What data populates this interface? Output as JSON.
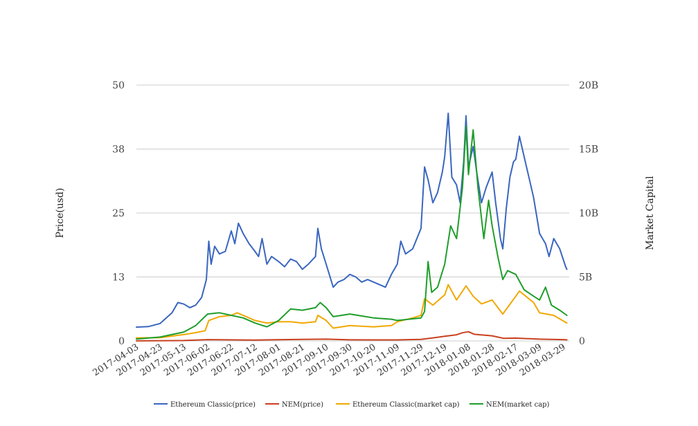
{
  "chart_data": {
    "type": "line",
    "title": "",
    "ylabel_left": "Price(usd)",
    "ylabel_right": "Market Capital",
    "ylim_left": [
      0,
      50
    ],
    "ylim_right": [
      0,
      20000000000
    ],
    "left_ticks": [
      {
        "v": 0,
        "label": "0"
      },
      {
        "v": 12.5,
        "label": "13"
      },
      {
        "v": 25,
        "label": "25"
      },
      {
        "v": 37.5,
        "label": "38"
      },
      {
        "v": 50,
        "label": "50"
      }
    ],
    "right_ticks": [
      {
        "v": 0,
        "label": "0"
      },
      {
        "v": 5000000000,
        "label": "5B"
      },
      {
        "v": 10000000000,
        "label": "10B"
      },
      {
        "v": 15000000000,
        "label": "15B"
      },
      {
        "v": 20000000000,
        "label": "20B"
      }
    ],
    "x_range": [
      "2017-04-03",
      "2018-04-03"
    ],
    "x_ticks": [
      "2017-04-03",
      "2017-04-23",
      "2017-05-13",
      "2017-06-02",
      "2017-06-22",
      "2017-07-12",
      "2017-08-01",
      "2017-08-21",
      "2017-09-10",
      "2017-09-30",
      "2017-10-20",
      "2017-11-09",
      "2017-11-29",
      "2017-12-19",
      "2018-01-08",
      "2018-01-28",
      "2018-02-17",
      "2018-03-09",
      "2018-03-29"
    ],
    "grid": true,
    "legend_position": "bottom",
    "series": [
      {
        "name": "Ethereum Classic(price)",
        "color": "#3a66bf",
        "axis": "left",
        "points": [
          [
            "2017-04-03",
            2.7
          ],
          [
            "2017-04-13",
            2.8
          ],
          [
            "2017-04-23",
            3.4
          ],
          [
            "2017-05-03",
            5.5
          ],
          [
            "2017-05-08",
            7.5
          ],
          [
            "2017-05-13",
            7.2
          ],
          [
            "2017-05-18",
            6.5
          ],
          [
            "2017-05-23",
            7.0
          ],
          [
            "2017-05-28",
            8.5
          ],
          [
            "2017-06-01",
            12.0
          ],
          [
            "2017-06-03",
            19.5
          ],
          [
            "2017-06-05",
            15.0
          ],
          [
            "2017-06-08",
            18.5
          ],
          [
            "2017-06-12",
            17.0
          ],
          [
            "2017-06-17",
            17.5
          ],
          [
            "2017-06-22",
            21.5
          ],
          [
            "2017-06-25",
            19.0
          ],
          [
            "2017-06-28",
            23.0
          ],
          [
            "2017-07-02",
            21.0
          ],
          [
            "2017-07-07",
            19.0
          ],
          [
            "2017-07-12",
            17.5
          ],
          [
            "2017-07-15",
            16.5
          ],
          [
            "2017-07-18",
            20.0
          ],
          [
            "2017-07-22",
            15.0
          ],
          [
            "2017-07-26",
            16.5
          ],
          [
            "2017-08-01",
            15.5
          ],
          [
            "2017-08-06",
            14.5
          ],
          [
            "2017-08-11",
            16.0
          ],
          [
            "2017-08-16",
            15.5
          ],
          [
            "2017-08-21",
            14.0
          ],
          [
            "2017-08-26",
            15.0
          ],
          [
            "2017-09-01",
            16.5
          ],
          [
            "2017-09-03",
            22.0
          ],
          [
            "2017-09-06",
            18.0
          ],
          [
            "2017-09-10",
            15.0
          ],
          [
            "2017-09-14",
            12.0
          ],
          [
            "2017-09-16",
            10.5
          ],
          [
            "2017-09-20",
            11.5
          ],
          [
            "2017-09-25",
            12.0
          ],
          [
            "2017-09-30",
            13.0
          ],
          [
            "2017-10-05",
            12.5
          ],
          [
            "2017-10-10",
            11.5
          ],
          [
            "2017-10-15",
            12.0
          ],
          [
            "2017-10-20",
            11.5
          ],
          [
            "2017-10-25",
            11.0
          ],
          [
            "2017-10-30",
            10.5
          ],
          [
            "2017-11-04",
            13.0
          ],
          [
            "2017-11-09",
            15.0
          ],
          [
            "2017-11-12",
            19.5
          ],
          [
            "2017-11-16",
            17.0
          ],
          [
            "2017-11-22",
            18.0
          ],
          [
            "2017-11-29",
            22.0
          ],
          [
            "2017-12-02",
            34.0
          ],
          [
            "2017-12-05",
            31.5
          ],
          [
            "2017-12-09",
            27.0
          ],
          [
            "2017-12-13",
            29.0
          ],
          [
            "2017-12-17",
            33.0
          ],
          [
            "2017-12-19",
            36.0
          ],
          [
            "2017-12-22",
            44.5
          ],
          [
            "2017-12-25",
            32.0
          ],
          [
            "2017-12-29",
            30.5
          ],
          [
            "2018-01-01",
            27.0
          ],
          [
            "2018-01-04",
            35.0
          ],
          [
            "2018-01-06",
            44.0
          ],
          [
            "2018-01-08",
            34.0
          ],
          [
            "2018-01-12",
            38.0
          ],
          [
            "2018-01-15",
            33.0
          ],
          [
            "2018-01-19",
            27.0
          ],
          [
            "2018-01-23",
            30.0
          ],
          [
            "2018-01-28",
            33.0
          ],
          [
            "2018-01-31",
            27.0
          ],
          [
            "2018-02-04",
            20.0
          ],
          [
            "2018-02-06",
            18.0
          ],
          [
            "2018-02-09",
            26.0
          ],
          [
            "2018-02-12",
            32.0
          ],
          [
            "2018-02-15",
            35.0
          ],
          [
            "2018-02-17",
            35.5
          ],
          [
            "2018-02-20",
            40.0
          ],
          [
            "2018-02-24",
            36.0
          ],
          [
            "2018-02-28",
            32.0
          ],
          [
            "2018-03-04",
            28.0
          ],
          [
            "2018-03-09",
            21.0
          ],
          [
            "2018-03-14",
            19.0
          ],
          [
            "2018-03-17",
            16.5
          ],
          [
            "2018-03-21",
            20.0
          ],
          [
            "2018-03-26",
            18.0
          ],
          [
            "2018-03-31",
            14.5
          ],
          [
            "2018-04-01",
            14.0
          ]
        ]
      },
      {
        "name": "NEM(price)",
        "color": "#c8401e",
        "axis": "left",
        "points": [
          [
            "2017-04-03",
            0.02
          ],
          [
            "2017-05-13",
            0.08
          ],
          [
            "2017-06-02",
            0.25
          ],
          [
            "2017-07-12",
            0.18
          ],
          [
            "2017-08-21",
            0.3
          ],
          [
            "2017-09-10",
            0.35
          ],
          [
            "2017-09-30",
            0.22
          ],
          [
            "2017-10-20",
            0.2
          ],
          [
            "2017-11-09",
            0.2
          ],
          [
            "2017-11-29",
            0.3
          ],
          [
            "2017-12-09",
            0.6
          ],
          [
            "2017-12-19",
            0.9
          ],
          [
            "2017-12-29",
            1.2
          ],
          [
            "2018-01-03",
            1.6
          ],
          [
            "2018-01-08",
            1.8
          ],
          [
            "2018-01-13",
            1.3
          ],
          [
            "2018-01-28",
            1.0
          ],
          [
            "2018-02-07",
            0.5
          ],
          [
            "2018-02-17",
            0.55
          ],
          [
            "2018-03-09",
            0.35
          ],
          [
            "2018-03-29",
            0.25
          ],
          [
            "2018-04-01",
            0.22
          ]
        ]
      },
      {
        "name": "Ethereum Classic(market cap)",
        "color": "#f0a800",
        "axis": "right",
        "points": [
          [
            "2017-04-03",
            240000000
          ],
          [
            "2017-04-23",
            260000000
          ],
          [
            "2017-05-13",
            500000000
          ],
          [
            "2017-05-23",
            650000000
          ],
          [
            "2017-05-31",
            800000000
          ],
          [
            "2017-06-03",
            1600000000
          ],
          [
            "2017-06-12",
            1900000000
          ],
          [
            "2017-06-22",
            2000000000
          ],
          [
            "2017-06-27",
            2200000000
          ],
          [
            "2017-07-07",
            1800000000
          ],
          [
            "2017-07-12",
            1600000000
          ],
          [
            "2017-07-22",
            1400000000
          ],
          [
            "2017-08-01",
            1500000000
          ],
          [
            "2017-08-11",
            1500000000
          ],
          [
            "2017-08-21",
            1400000000
          ],
          [
            "2017-09-01",
            1500000000
          ],
          [
            "2017-09-03",
            2000000000
          ],
          [
            "2017-09-10",
            1600000000
          ],
          [
            "2017-09-16",
            1000000000
          ],
          [
            "2017-09-30",
            1200000000
          ],
          [
            "2017-10-20",
            1100000000
          ],
          [
            "2017-11-04",
            1200000000
          ],
          [
            "2017-11-09",
            1500000000
          ],
          [
            "2017-11-22",
            1800000000
          ],
          [
            "2017-11-29",
            2000000000
          ],
          [
            "2017-12-02",
            3300000000
          ],
          [
            "2017-12-09",
            2800000000
          ],
          [
            "2017-12-19",
            3600000000
          ],
          [
            "2017-12-22",
            4400000000
          ],
          [
            "2017-12-29",
            3200000000
          ],
          [
            "2018-01-06",
            4300000000
          ],
          [
            "2018-01-12",
            3500000000
          ],
          [
            "2018-01-19",
            2900000000
          ],
          [
            "2018-01-28",
            3200000000
          ],
          [
            "2018-02-06",
            2100000000
          ],
          [
            "2018-02-17",
            3500000000
          ],
          [
            "2018-02-20",
            3900000000
          ],
          [
            "2018-03-04",
            3000000000
          ],
          [
            "2018-03-09",
            2200000000
          ],
          [
            "2018-03-21",
            2000000000
          ],
          [
            "2018-04-01",
            1400000000
          ]
        ]
      },
      {
        "name": "NEM(market cap)",
        "color": "#1f9e2a",
        "axis": "right",
        "points": [
          [
            "2017-04-03",
            150000000
          ],
          [
            "2017-04-23",
            300000000
          ],
          [
            "2017-05-13",
            700000000
          ],
          [
            "2017-05-23",
            1200000000
          ],
          [
            "2017-06-02",
            2100000000
          ],
          [
            "2017-06-12",
            2200000000
          ],
          [
            "2017-06-22",
            2000000000
          ],
          [
            "2017-07-02",
            1800000000
          ],
          [
            "2017-07-12",
            1400000000
          ],
          [
            "2017-07-22",
            1100000000
          ],
          [
            "2017-08-01",
            1600000000
          ],
          [
            "2017-08-11",
            2500000000
          ],
          [
            "2017-08-21",
            2400000000
          ],
          [
            "2017-09-01",
            2600000000
          ],
          [
            "2017-09-05",
            3000000000
          ],
          [
            "2017-09-10",
            2600000000
          ],
          [
            "2017-09-16",
            1900000000
          ],
          [
            "2017-09-30",
            2100000000
          ],
          [
            "2017-10-20",
            1800000000
          ],
          [
            "2017-11-04",
            1700000000
          ],
          [
            "2017-11-09",
            1600000000
          ],
          [
            "2017-11-29",
            1800000000
          ],
          [
            "2017-12-02",
            2300000000
          ],
          [
            "2017-12-05",
            6200000000
          ],
          [
            "2017-12-08",
            3800000000
          ],
          [
            "2017-12-13",
            4200000000
          ],
          [
            "2017-12-19",
            6000000000
          ],
          [
            "2017-12-24",
            9000000000
          ],
          [
            "2017-12-29",
            8000000000
          ],
          [
            "2018-01-03",
            12000000000
          ],
          [
            "2018-01-06",
            16800000000
          ],
          [
            "2018-01-08",
            13000000000
          ],
          [
            "2018-01-12",
            16500000000
          ],
          [
            "2018-01-16",
            12000000000
          ],
          [
            "2018-01-21",
            8000000000
          ],
          [
            "2018-01-25",
            11000000000
          ],
          [
            "2018-01-28",
            9000000000
          ],
          [
            "2018-02-02",
            6500000000
          ],
          [
            "2018-02-06",
            4800000000
          ],
          [
            "2018-02-10",
            5500000000
          ],
          [
            "2018-02-17",
            5200000000
          ],
          [
            "2018-02-24",
            4000000000
          ],
          [
            "2018-03-04",
            3500000000
          ],
          [
            "2018-03-09",
            3200000000
          ],
          [
            "2018-03-14",
            4200000000
          ],
          [
            "2018-03-19",
            2800000000
          ],
          [
            "2018-03-26",
            2400000000
          ],
          [
            "2018-04-01",
            2000000000
          ]
        ]
      }
    ]
  }
}
